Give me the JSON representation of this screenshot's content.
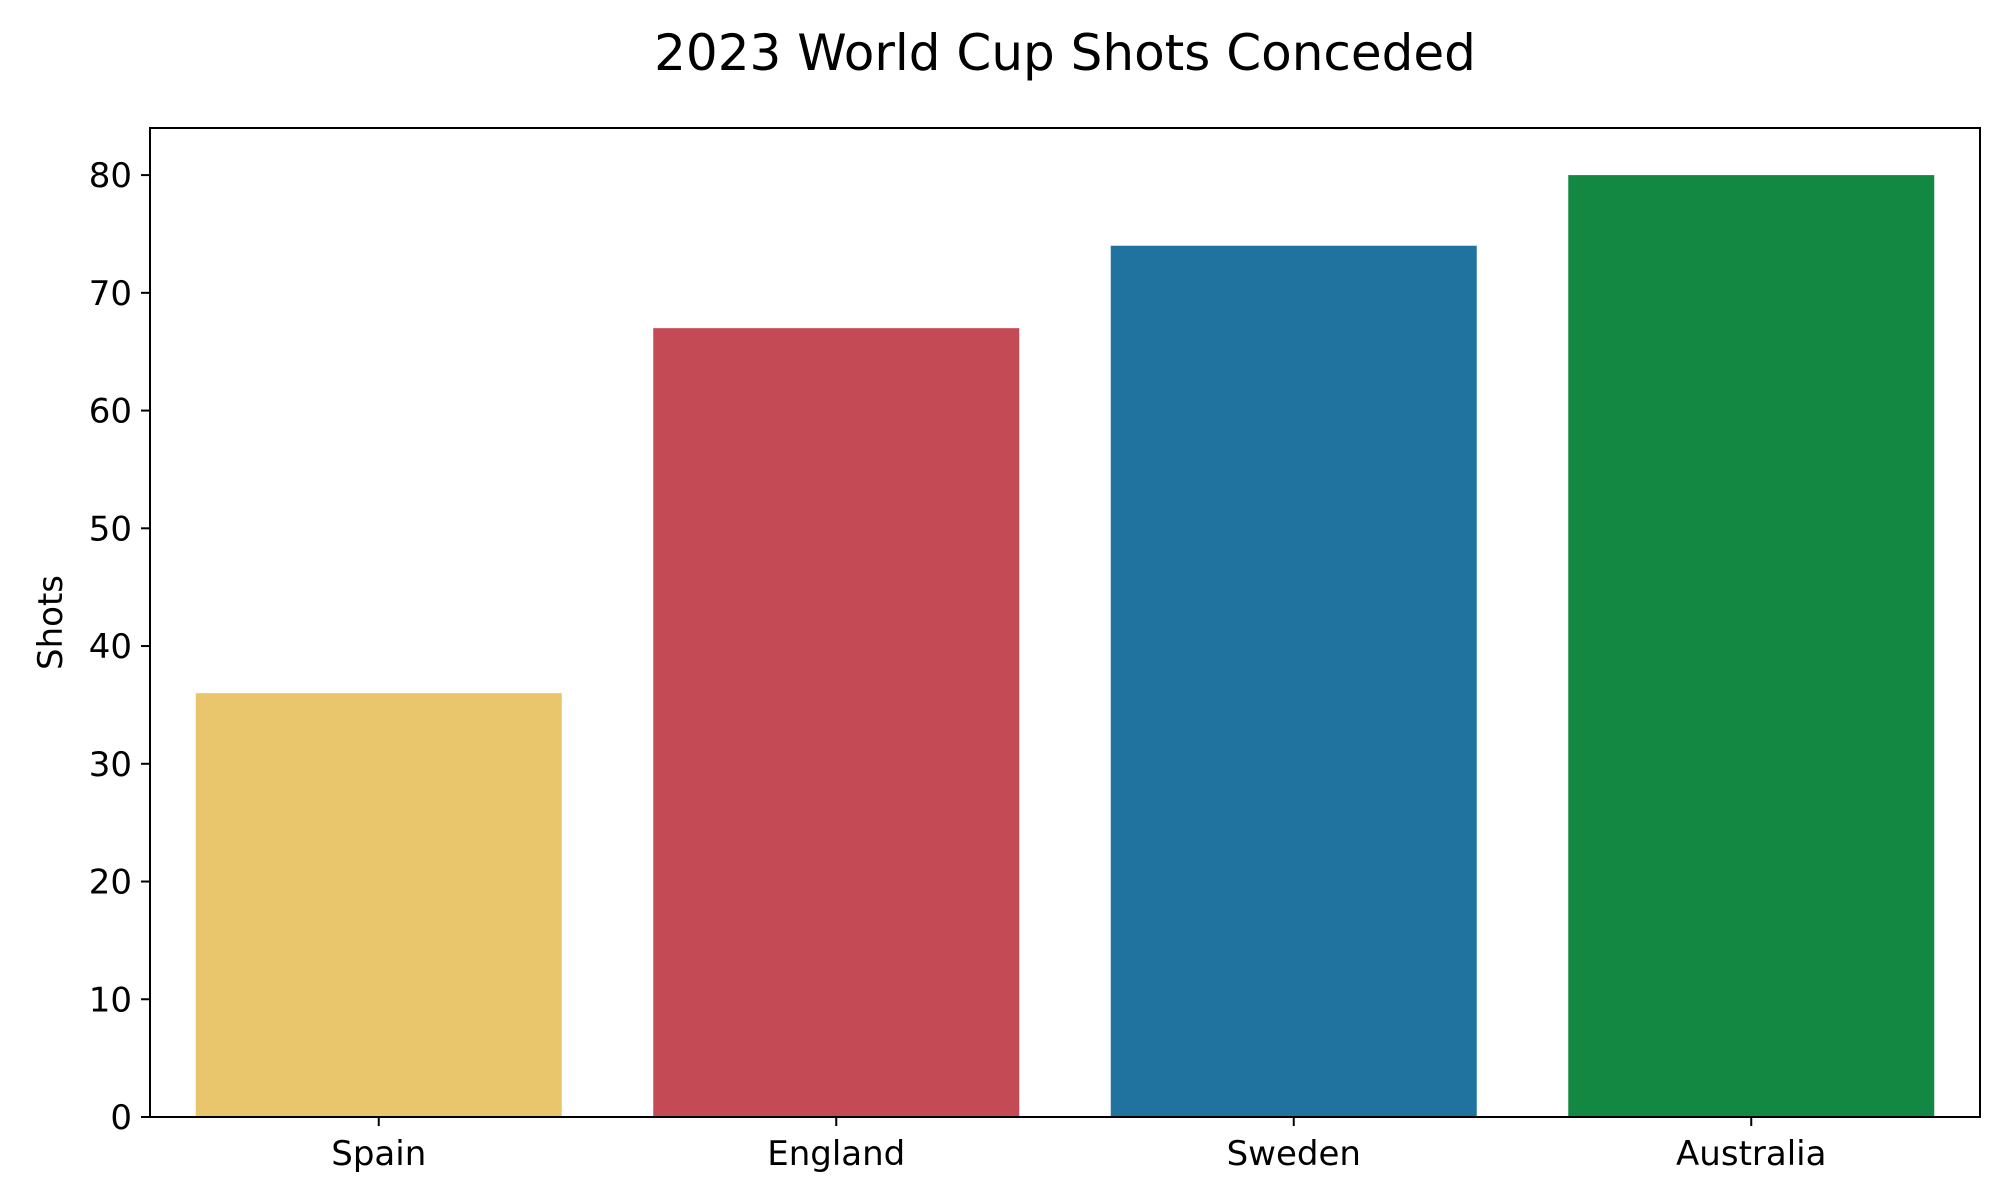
{
  "chart_data": {
    "type": "bar",
    "title": "2023 World Cup Shots Conceded",
    "xlabel": "",
    "ylabel": "Shots",
    "categories": [
      "Spain",
      "England",
      "Sweden",
      "Australia"
    ],
    "values": [
      36,
      67,
      74,
      80
    ],
    "colors": [
      "#e9c66b",
      "#c44a55",
      "#1f739e",
      "#138843"
    ],
    "ylim": [
      0,
      84
    ],
    "yticks": [
      0,
      10,
      20,
      30,
      40,
      50,
      60,
      70,
      80
    ],
    "grid": false,
    "legend": "none"
  }
}
